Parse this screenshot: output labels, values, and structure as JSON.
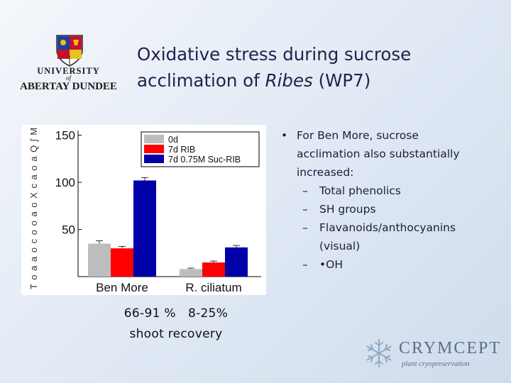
{
  "logo": {
    "line1": "UNIVERSITY",
    "line2": "of",
    "line3": "ABERTAY DUNDEE",
    "icon": "university-crest-icon"
  },
  "slide": {
    "title_line1": "Oxidative stress during sucrose",
    "title_line2_prefix": "acclimation of ",
    "title_line2_italic": "Ribes",
    "title_line2_suffix": " (WP7)"
  },
  "bullets": {
    "marker": "•",
    "dash": "–",
    "intro_lines": [
      "For Ben More, sucrose",
      "acclimation also substantially",
      "increased:"
    ],
    "subitems": [
      {
        "lines": [
          "Total phenolics"
        ]
      },
      {
        "lines": [
          "SH groups"
        ]
      },
      {
        "lines": [
          "Flavanoids/anthocyanins",
          "(visual)"
        ]
      },
      {
        "lines": [
          "•OH"
        ]
      }
    ]
  },
  "recovery": {
    "line1": "66-91 %   8-25%",
    "line2": "shoot recovery"
  },
  "brand": {
    "name": "CRYMCEPT",
    "tagline": "plant cryopreservation",
    "icon": "snowflake-icon"
  },
  "chart_data": {
    "type": "bar",
    "categories": [
      "Ben More",
      "R. ciliatum"
    ],
    "yticks": [
      50,
      100,
      150
    ],
    "ylim": [
      0,
      155
    ],
    "legend_position": "top-right",
    "ylabel_garbled": "T o a a o c o o a o X c a o a Q ʃ M",
    "series": [
      {
        "name": "0d",
        "color": "#bdbdbd",
        "values": [
          35,
          8
        ],
        "errors": [
          3,
          1
        ]
      },
      {
        "name": "7d RIB",
        "color": "#ff0000",
        "values": [
          30,
          15
        ],
        "errors": [
          2,
          1.5
        ]
      },
      {
        "name": "7d 0.75M Suc-RIB",
        "color": "#0000a8",
        "values": [
          102,
          31
        ],
        "errors": [
          3,
          2
        ]
      }
    ]
  }
}
